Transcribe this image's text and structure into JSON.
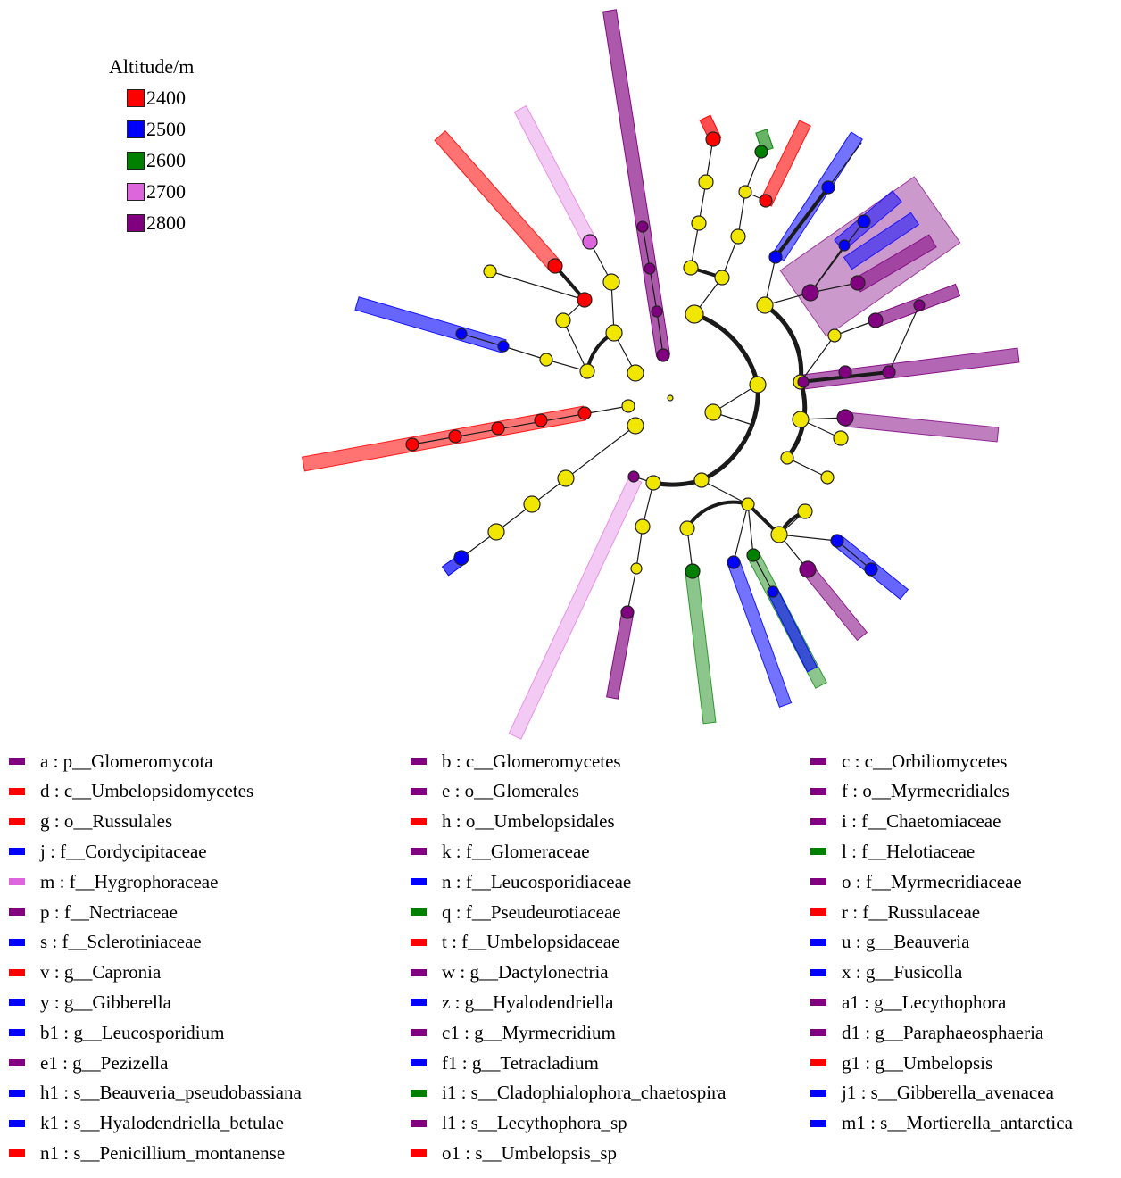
{
  "altitude_legend": {
    "title": "Altitude/m",
    "items": [
      {
        "label": "2400",
        "color": "#ff0000"
      },
      {
        "label": "2500",
        "color": "#0000ff"
      },
      {
        "label": "2600",
        "color": "#008000"
      },
      {
        "label": "2700",
        "color": "#dd66dd"
      },
      {
        "label": "2800",
        "color": "#800080"
      }
    ]
  },
  "taxa": [
    {
      "text": "a : p__Glomeromycota",
      "color": "#800080"
    },
    {
      "text": "b : c__Glomeromycetes",
      "color": "#800080"
    },
    {
      "text": "c : c__Orbiliomycetes",
      "color": "#800080"
    },
    {
      "text": "d : c__Umbelopsidomycetes",
      "color": "#ff0000"
    },
    {
      "text": "e : o__Glomerales",
      "color": "#800080"
    },
    {
      "text": "f : o__Myrmecridiales",
      "color": "#800080"
    },
    {
      "text": "g : o__Russulales",
      "color": "#ff0000"
    },
    {
      "text": "h : o__Umbelopsidales",
      "color": "#ff0000"
    },
    {
      "text": "i : f__Chaetomiaceae",
      "color": "#800080"
    },
    {
      "text": "j : f__Cordycipitaceae",
      "color": "#0000ff"
    },
    {
      "text": "k : f__Glomeraceae",
      "color": "#800080"
    },
    {
      "text": "l : f__Helotiaceae",
      "color": "#008000"
    },
    {
      "text": "m : f__Hygrophoraceae",
      "color": "#dd66dd"
    },
    {
      "text": "n : f__Leucosporidiaceae",
      "color": "#0000ff"
    },
    {
      "text": "o : f__Myrmecridiaceae",
      "color": "#800080"
    },
    {
      "text": "p : f__Nectriaceae",
      "color": "#800080"
    },
    {
      "text": "q : f__Pseudeurotiaceae",
      "color": "#008000"
    },
    {
      "text": "r : f__Russulaceae",
      "color": "#ff0000"
    },
    {
      "text": "s : f__Sclerotiniaceae",
      "color": "#0000ff"
    },
    {
      "text": "t : f__Umbelopsidaceae",
      "color": "#ff0000"
    },
    {
      "text": "u : g__Beauveria",
      "color": "#0000ff"
    },
    {
      "text": "v : g__Capronia",
      "color": "#ff0000"
    },
    {
      "text": "w : g__Dactylonectria",
      "color": "#800080"
    },
    {
      "text": "x : g__Fusicolla",
      "color": "#0000ff"
    },
    {
      "text": "y : g__Gibberella",
      "color": "#0000ff"
    },
    {
      "text": "z : g__Hyalodendriella",
      "color": "#0000ff"
    },
    {
      "text": "a1 : g__Lecythophora",
      "color": "#800080"
    },
    {
      "text": "b1 : g__Leucosporidium",
      "color": "#0000ff"
    },
    {
      "text": "c1 : g__Myrmecridium",
      "color": "#800080"
    },
    {
      "text": "d1 : g__Paraphaeosphaeria",
      "color": "#800080"
    },
    {
      "text": "e1 : g__Pezizella",
      "color": "#800080"
    },
    {
      "text": "f1 : g__Tetracladium",
      "color": "#0000ff"
    },
    {
      "text": "g1 : g__Umbelopsis",
      "color": "#ff0000"
    },
    {
      "text": "h1 : s__Beauveria_pseudobassiana",
      "color": "#0000ff"
    },
    {
      "text": "i1 : s__Cladophialophora_chaetospira",
      "color": "#008000"
    },
    {
      "text": "j1 : s__Gibberella_avenacea",
      "color": "#0000ff"
    },
    {
      "text": "k1 : s__Hyalodendriella_betulae",
      "color": "#0000ff"
    },
    {
      "text": "l1 : s__Lecythophora_sp",
      "color": "#800080"
    },
    {
      "text": "m1 : s__Mortierella_antarctica",
      "color": "#0000ff"
    },
    {
      "text": "n1 : s__Penicillium_montanense",
      "color": "#ff0000"
    },
    {
      "text": "o1 : s__Umbelopsis_sp",
      "color": "#ff0000"
    }
  ]
}
